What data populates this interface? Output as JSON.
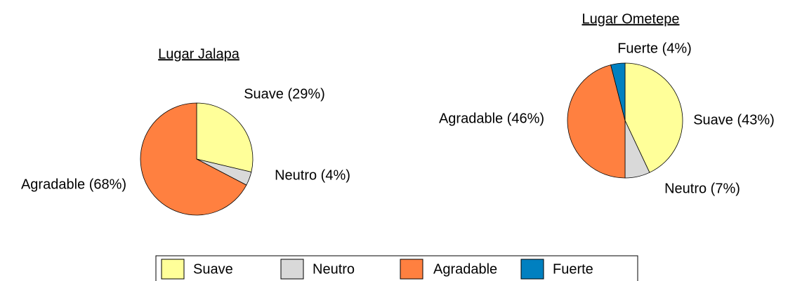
{
  "chart_data": [
    {
      "type": "pie",
      "title": "Lugar Jalapa",
      "categories": [
        "Suave",
        "Neutro",
        "Agradable"
      ],
      "values": [
        29,
        4,
        68
      ],
      "value_labels": [
        "Suave (29%)",
        "Neutro (4%)",
        "Agradable (68%)"
      ],
      "colors": [
        "#ffff99",
        "#d9d9d9",
        "#ff8040"
      ]
    },
    {
      "type": "pie",
      "title": "Lugar Ometepe",
      "categories": [
        "Suave",
        "Neutro",
        "Agradable",
        "Fuerte"
      ],
      "values": [
        43,
        7,
        46,
        4
      ],
      "value_labels": [
        "Suave (43%)",
        "Neutro (7%)",
        "Agradable (46%)",
        "Fuerte (4%)"
      ],
      "colors": [
        "#ffff99",
        "#d9d9d9",
        "#ff8040",
        "#0080c0"
      ]
    }
  ],
  "legend": {
    "entries": [
      {
        "name": "Suave",
        "color": "#ffff99"
      },
      {
        "name": "Neutro",
        "color": "#d9d9d9"
      },
      {
        "name": "Agradable",
        "color": "#ff8040"
      },
      {
        "name": "Fuerte",
        "color": "#0080c0"
      }
    ]
  }
}
